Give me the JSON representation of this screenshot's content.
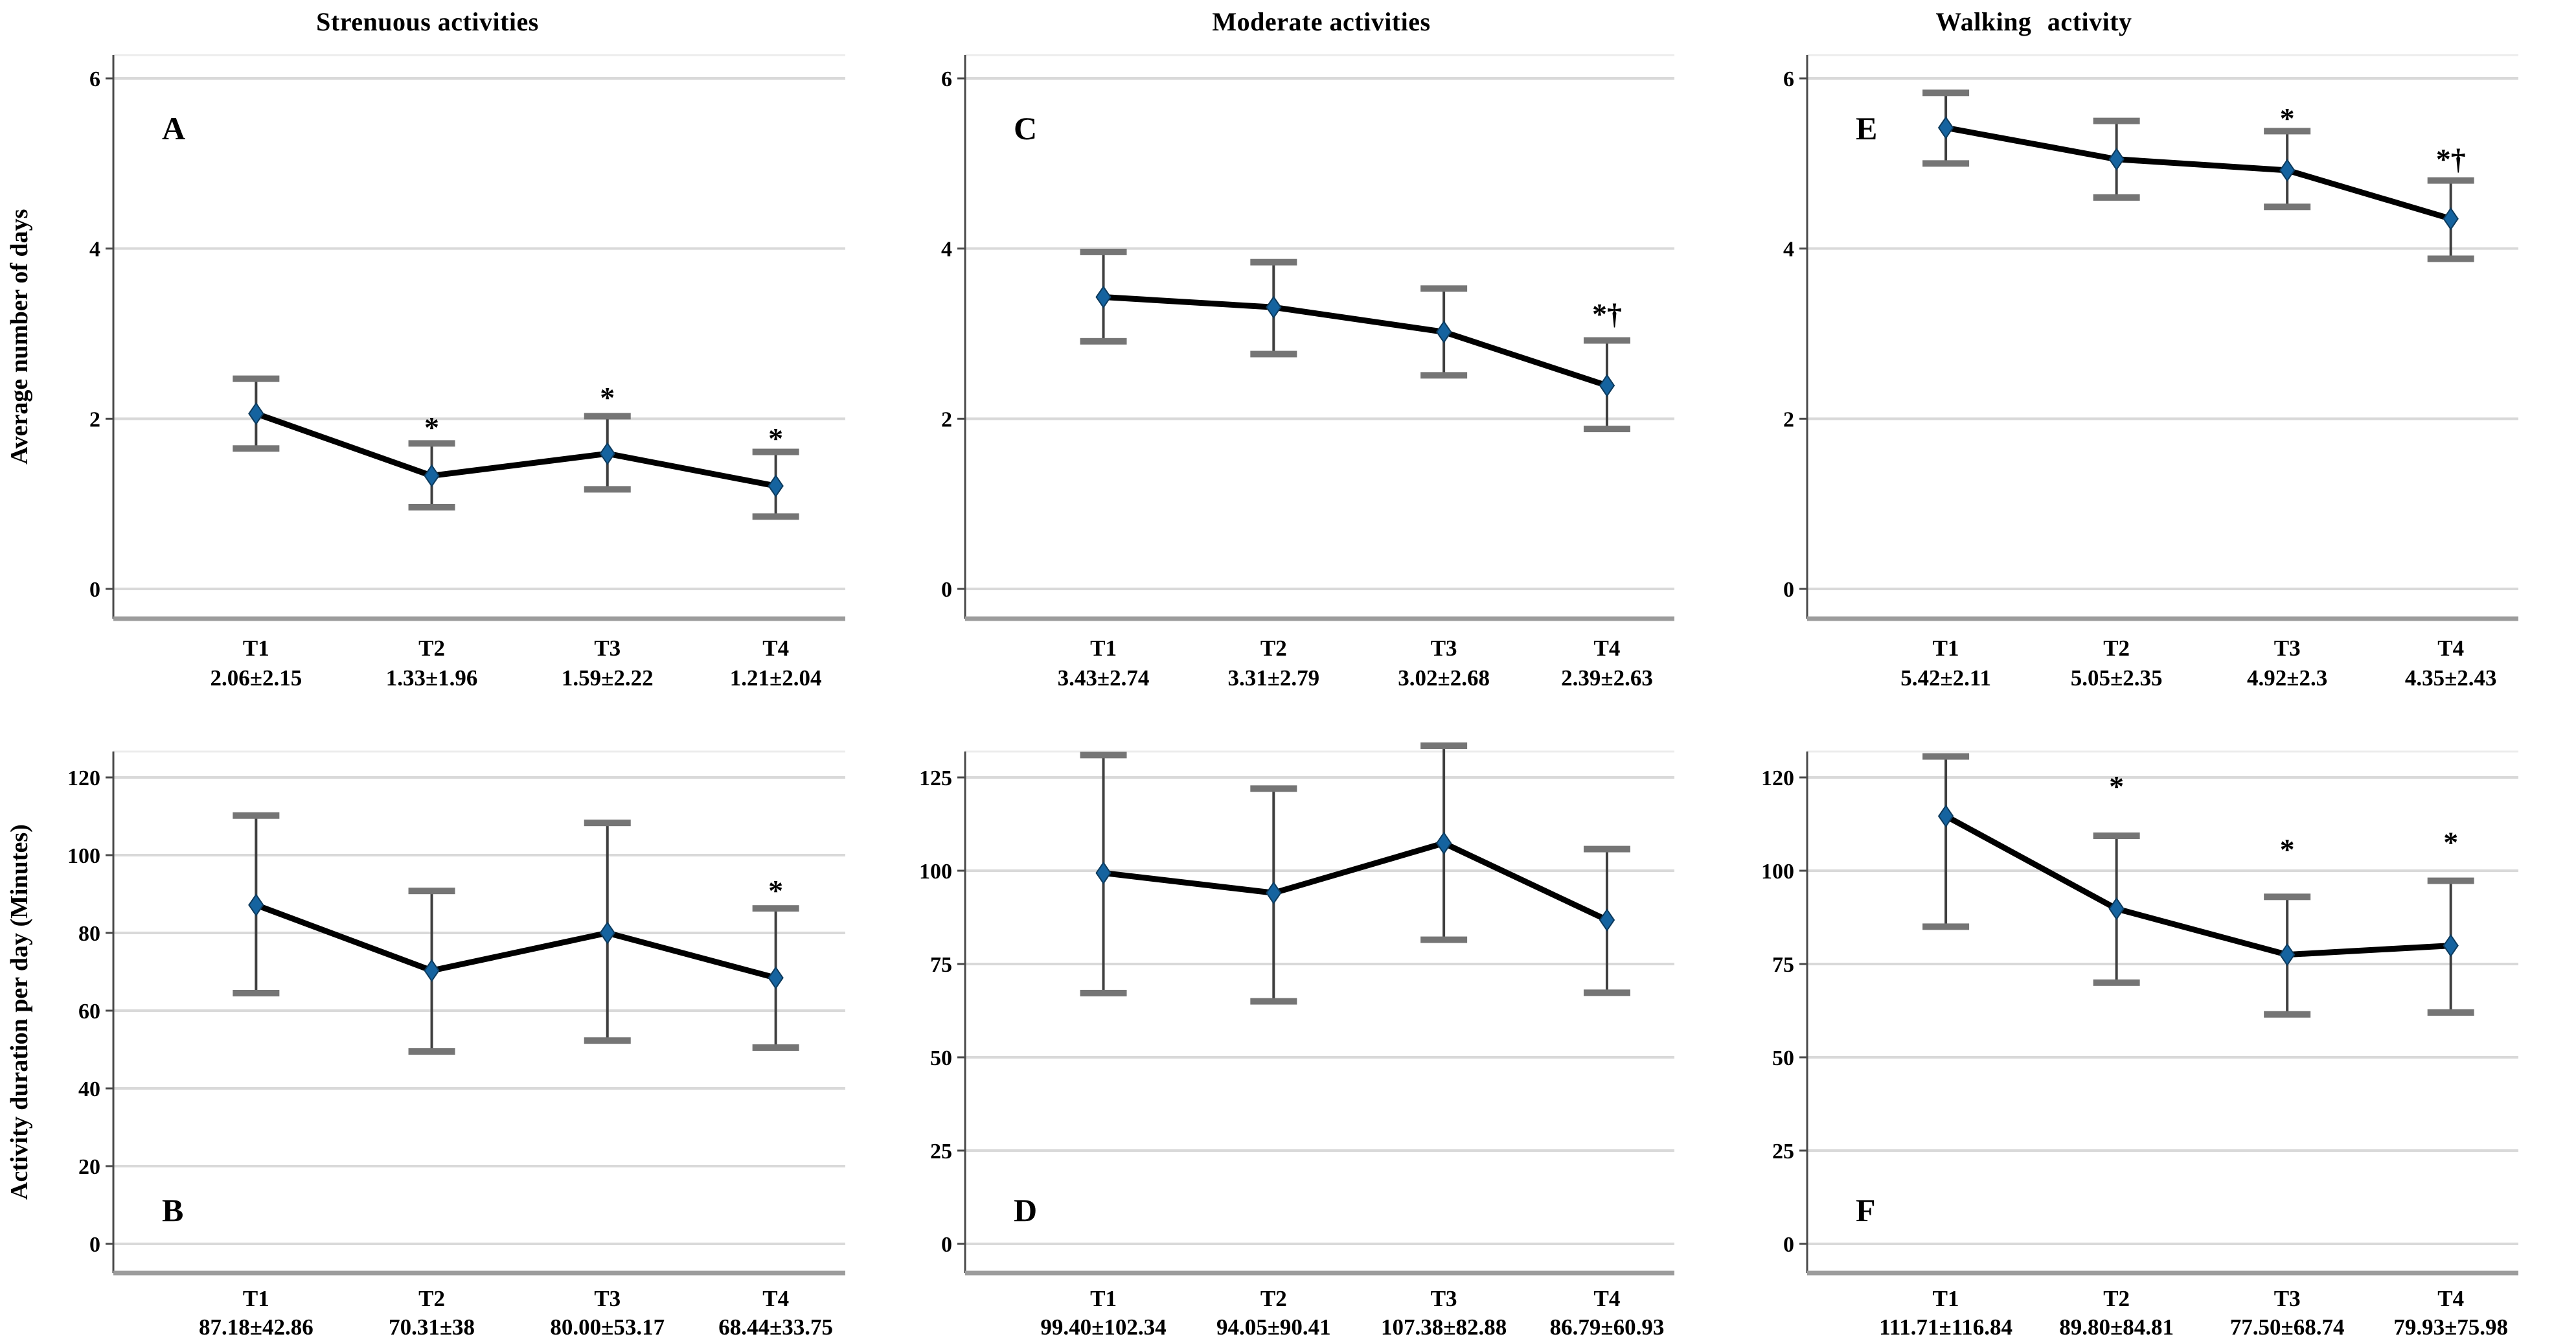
{
  "figure": {
    "row_labels": [
      "Average number of days",
      "Activity duration per day (Minutes)"
    ],
    "column_titles": [
      "Strenuous activities",
      "Moderate activities",
      "Walking activity"
    ],
    "colors": {
      "marker": "#15639f",
      "marker_stroke": "#0d3a5c",
      "data_line": "#000000",
      "gridline": "#d9d9d9",
      "error_line": "#3f3f3f",
      "error_cap": "#757575",
      "y_axis": "#4a4a4a",
      "x_axis_base": "#9c9c9c",
      "plot_top_border": "#ececec",
      "text": "#000000"
    }
  },
  "chart_data": [
    {
      "type": "line",
      "letter": "A",
      "row": 0,
      "col": 0,
      "title": "Strenuous activities",
      "ylabel": "Average number of days",
      "yticks": [
        0,
        2,
        4,
        6
      ],
      "categories": [
        "T1",
        "T2",
        "T3",
        "T4"
      ],
      "means": [
        2.06,
        1.33,
        1.59,
        1.21
      ],
      "mean_sd_labels": [
        "2.06±2.15",
        "1.33±1.96",
        "1.59±2.22",
        "1.21±2.04"
      ],
      "err_low": [
        1.65,
        0.96,
        1.17,
        0.85
      ],
      "err_high": [
        2.47,
        1.71,
        2.03,
        1.61
      ],
      "annotations": [
        null,
        {
          "text": "*",
          "y": 1.95
        },
        {
          "text": "*",
          "y": 2.3
        },
        {
          "text": "*",
          "y": 1.82
        }
      ]
    },
    {
      "type": "line",
      "letter": "C",
      "row": 0,
      "col": 1,
      "title": "Moderate activities",
      "ylabel": "Average number of days",
      "yticks": [
        0,
        2,
        4,
        6
      ],
      "categories": [
        "T1",
        "T2",
        "T3",
        "T4"
      ],
      "means": [
        3.43,
        3.31,
        3.02,
        2.39
      ],
      "mean_sd_labels": [
        "3.43±2.74",
        "3.31±2.79",
        "3.02±2.68",
        "2.39±2.63"
      ],
      "err_low": [
        2.91,
        2.76,
        2.51,
        1.88
      ],
      "err_high": [
        3.96,
        3.84,
        3.53,
        2.92
      ],
      "annotations": [
        null,
        null,
        null,
        {
          "text": "*†",
          "y": 3.28
        }
      ]
    },
    {
      "type": "line",
      "letter": "E",
      "row": 0,
      "col": 2,
      "title": "Walking activity",
      "ylabel": "Average number of days",
      "yticks": [
        0,
        2,
        4,
        6
      ],
      "categories": [
        "T1",
        "T2",
        "T3",
        "T4"
      ],
      "means": [
        5.42,
        5.05,
        4.92,
        4.35
      ],
      "mean_sd_labels": [
        "5.42±2.11",
        "5.05±2.35",
        "4.92±2.3",
        "4.35±2.43"
      ],
      "err_low": [
        5.0,
        4.6,
        4.49,
        3.88
      ],
      "err_high": [
        5.83,
        5.5,
        5.38,
        4.8
      ],
      "annotations": [
        null,
        null,
        {
          "text": "*",
          "y": 5.58
        },
        {
          "text": "*†",
          "y": 5.1
        }
      ]
    },
    {
      "type": "line",
      "letter": "B",
      "row": 1,
      "col": 0,
      "title": "",
      "ylabel": "Activity duration per day (Minutes)",
      "yticks": [
        0,
        20,
        40,
        60,
        80,
        100,
        120
      ],
      "categories": [
        "T1",
        "T2",
        "T3",
        "T4"
      ],
      "means": [
        87.18,
        70.31,
        80.0,
        68.44
      ],
      "mean_sd_labels": [
        "87.18±42.86",
        "70.31±38",
        "80.00±53.17",
        "68.44±33.75"
      ],
      "err_low": [
        64.5,
        49.5,
        52.3,
        50.5
      ],
      "err_high": [
        110.2,
        90.8,
        108.3,
        86.3
      ],
      "annotations": [
        null,
        null,
        null,
        {
          "text": "*",
          "y": 92
        }
      ]
    },
    {
      "type": "line",
      "letter": "D",
      "row": 1,
      "col": 1,
      "title": "",
      "ylabel": "Activity duration per day (Minutes)",
      "yticks": [
        0,
        25,
        50,
        75,
        100,
        125
      ],
      "categories": [
        "T1",
        "T2",
        "T3",
        "T4"
      ],
      "means": [
        99.4,
        94.05,
        107.38,
        86.79
      ],
      "mean_sd_labels": [
        "99.40±102.34",
        "94.05±90.41",
        "107.38±82.88",
        "86.79±60.93"
      ],
      "err_low": [
        67.2,
        65.0,
        81.5,
        67.3
      ],
      "err_high": [
        131.0,
        122.0,
        133.5,
        105.8
      ],
      "annotations": [
        null,
        null,
        null,
        null
      ]
    },
    {
      "type": "line",
      "letter": "F",
      "row": 1,
      "col": 2,
      "title": "",
      "ylabel": "Activity duration per day (Minutes)",
      "yticks": [
        0,
        25,
        50,
        75,
        100,
        120
      ],
      "categories": [
        "T1",
        "T2",
        "T3",
        "T4"
      ],
      "means": [
        111.71,
        89.8,
        77.5,
        79.93
      ],
      "mean_sd_labels": [
        "111.71±116.84",
        "89.80±84.81",
        "77.50±68.74",
        "79.93±75.98"
      ],
      "err_low": [
        85.0,
        70.0,
        61.5,
        62.0
      ],
      "err_high": [
        124.5,
        107.5,
        93.0,
        97.3
      ],
      "annotations": [
        null,
        {
          "text": "*",
          "y": 119
        },
        {
          "text": "*",
          "y": 105.5
        },
        {
          "text": "*",
          "y": 107
        }
      ]
    }
  ]
}
